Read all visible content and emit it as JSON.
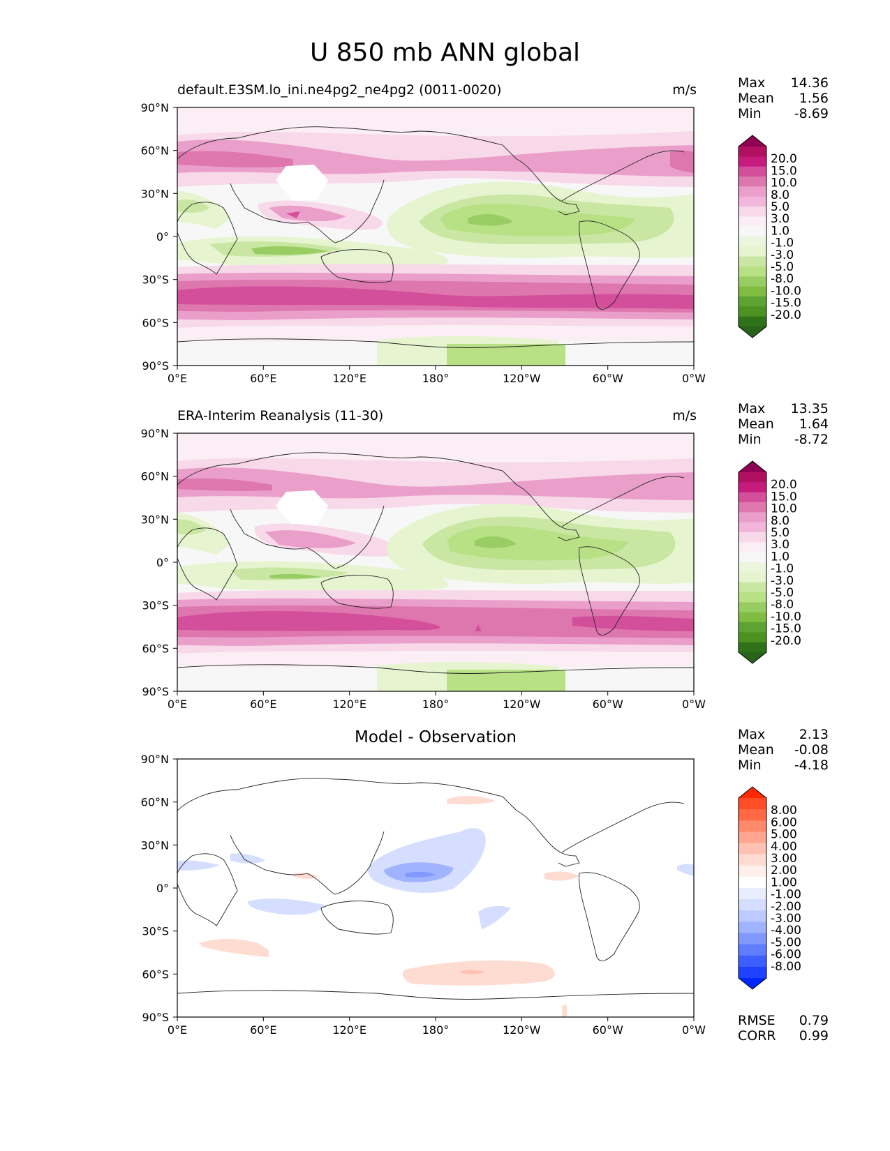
{
  "figure": {
    "title": "U 850 mb ANN global"
  },
  "lat_ticks": [
    "90°N",
    "60°N",
    "30°N",
    "0°",
    "30°S",
    "60°S",
    "90°S"
  ],
  "lon_ticks": [
    "0°E",
    "60°E",
    "120°E",
    "180°",
    "120°W",
    "60°W",
    "0°W"
  ],
  "panels": [
    {
      "id": "test",
      "title": "default.E3SM.lo_ini.ne4pg2_ne4pg2 (0011-0020)",
      "units": "m/s",
      "stats": [
        {
          "label": "Max",
          "value": "14.36"
        },
        {
          "label": "Mean",
          "value": "1.56"
        },
        {
          "label": "Min",
          "value": "-8.69"
        }
      ],
      "colorbar": {
        "labels": [
          "20.0",
          "15.0",
          "10.0",
          "8.0",
          "5.0",
          "3.0",
          "1.0",
          "-1.0",
          "-3.0",
          "-5.0",
          "-8.0",
          "-10.0",
          "-15.0",
          "-20.0"
        ],
        "colors": [
          "#8e0152",
          "#b0105f",
          "#c51b7d",
          "#d44f9b",
          "#de77ae",
          "#ea9fcb",
          "#f1b6da",
          "#f8d9ea",
          "#fbeef4",
          "#f7f7f7",
          "#ecf5de",
          "#e6f5d0",
          "#c9e7a3",
          "#b8e186",
          "#98cd63",
          "#7fbc41",
          "#5da232",
          "#4d9221",
          "#2f7218",
          "#276419"
        ]
      }
    },
    {
      "id": "reference",
      "title": "ERA-Interim Reanalysis (11-30)",
      "units": "m/s",
      "stats": [
        {
          "label": "Max",
          "value": "13.35"
        },
        {
          "label": "Mean",
          "value": "1.64"
        },
        {
          "label": "Min",
          "value": "-8.72"
        }
      ],
      "colorbar": {
        "labels": [
          "20.0",
          "15.0",
          "10.0",
          "8.0",
          "5.0",
          "3.0",
          "1.0",
          "-1.0",
          "-3.0",
          "-5.0",
          "-8.0",
          "-10.0",
          "-15.0",
          "-20.0"
        ],
        "colors": [
          "#8e0152",
          "#b0105f",
          "#c51b7d",
          "#d44f9b",
          "#de77ae",
          "#ea9fcb",
          "#f1b6da",
          "#f8d9ea",
          "#fbeef4",
          "#f7f7f7",
          "#ecf5de",
          "#e6f5d0",
          "#c9e7a3",
          "#b8e186",
          "#98cd63",
          "#7fbc41",
          "#5da232",
          "#4d9221",
          "#2f7218",
          "#276419"
        ]
      }
    },
    {
      "id": "difference",
      "title": "Model - Observation",
      "units": "",
      "stats": [
        {
          "label": "Max",
          "value": "2.13"
        },
        {
          "label": "Mean",
          "value": "-0.08"
        },
        {
          "label": "Min",
          "value": "-4.18"
        }
      ],
      "metrics": [
        {
          "label": "RMSE",
          "value": "0.79"
        },
        {
          "label": "CORR",
          "value": "0.99"
        }
      ],
      "colorbar": {
        "labels": [
          "8.00",
          "6.00",
          "5.00",
          "4.00",
          "3.00",
          "2.00",
          "1.00",
          "-1.00",
          "-2.00",
          "-3.00",
          "-4.00",
          "-5.00",
          "-6.00",
          "-8.00"
        ],
        "colors": [
          "#ff2a00",
          "#ff4d26",
          "#ff6a45",
          "#ff8a6a",
          "#ffa590",
          "#ffc2b2",
          "#ffdcd2",
          "#fff0eb",
          "#ffffff",
          "#e9eeff",
          "#d6deff",
          "#bccaff",
          "#a0b3ff",
          "#8198ff",
          "#5e7dff",
          "#3d5fff",
          "#1e42ff",
          "#0026ff"
        ]
      }
    }
  ]
}
